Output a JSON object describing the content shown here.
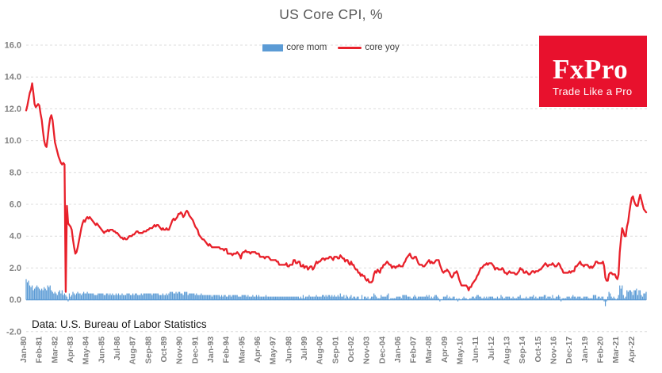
{
  "title": "US Core CPI, %",
  "footer": "Data: U.S. Bureau of Labor Statistics",
  "logo": {
    "brand": "FxPro",
    "tagline": "Trade Like a Pro",
    "bg": "#e8112d"
  },
  "legend": [
    {
      "label": "core mom",
      "color": "#5b9bd5",
      "type": "bar"
    },
    {
      "label": "core yoy",
      "color": "#e8202a",
      "type": "line"
    }
  ],
  "colors": {
    "bar": "#5b9bd5",
    "line": "#e8202a",
    "grid": "#dcdcdc",
    "axis_text": "#7f7f7f"
  },
  "chart_data": {
    "type": "bar+line",
    "title": "US Core CPI, %",
    "x_start": "Jan-1980",
    "x_end": "Feb-2023",
    "x_frequency": "monthly",
    "ylim": [
      -2.0,
      16.0
    ],
    "y_tick_step": 2.0,
    "y_tick_labels": [
      "16.0",
      "14.0",
      "12.0",
      "10.0",
      "8.0",
      "6.0",
      "4.0",
      "2.0",
      "0.0",
      "-2.0"
    ],
    "x_tick_labels": [
      "Jan-80",
      "Feb-81",
      "Mar-82",
      "Apr-83",
      "May-84",
      "Jun-85",
      "Jul-86",
      "Aug-87",
      "Sep-88",
      "Oct-89",
      "Nov-90",
      "Dec-91",
      "Jan-93",
      "Feb-94",
      "Mar-95",
      "Apr-96",
      "May-97",
      "Jun-98",
      "Jul-99",
      "Aug-00",
      "Sep-01",
      "Oct-02",
      "Nov-03",
      "Dec-04",
      "Jan-06",
      "Feb-07",
      "Mar-08",
      "Apr-09",
      "May-10",
      "Jun-11",
      "Jul-12",
      "Aug-13",
      "Sep-14",
      "Oct-15",
      "Nov-16",
      "Dec-17",
      "Jan-19",
      "Feb-20",
      "Mar-21",
      "Apr-22"
    ],
    "x_tick_month_interval": 13,
    "grid": "dashed-horizontal",
    "legend_position": "top-center",
    "series": [
      {
        "name": "core mom",
        "type": "bar",
        "color": "#5b9bd5",
        "values": [
          1.3,
          1.1,
          1.2,
          0.9,
          0.8,
          0.9,
          0.6,
          0.7,
          0.8,
          0.9,
          0.8,
          0.7,
          0.6,
          0.7,
          0.6,
          0.8,
          0.7,
          0.6,
          0.9,
          0.8,
          0.9,
          0.6,
          0.5,
          0.4,
          0.5,
          0.4,
          0.3,
          0.5,
          0.6,
          0.4,
          0.6,
          0.3,
          0.4,
          0.3,
          0.2,
          -0.1,
          0.4,
          0.2,
          0.3,
          0.5,
          0.4,
          0.3,
          0.4,
          0.5,
          0.4,
          0.4,
          0.3,
          0.4,
          0.5,
          0.4,
          0.4,
          0.5,
          0.4,
          0.4,
          0.4,
          0.4,
          0.4,
          0.3,
          0.3,
          0.3,
          0.4,
          0.4,
          0.4,
          0.4,
          0.4,
          0.3,
          0.3,
          0.4,
          0.4,
          0.3,
          0.4,
          0.3,
          0.4,
          0.3,
          0.3,
          0.4,
          0.3,
          0.4,
          0.3,
          0.3,
          0.4,
          0.3,
          0.3,
          0.3,
          0.4,
          0.4,
          0.4,
          0.3,
          0.3,
          0.4,
          0.3,
          0.4,
          0.4,
          0.3,
          0.3,
          0.3,
          0.4,
          0.3,
          0.4,
          0.4,
          0.4,
          0.4,
          0.4,
          0.4,
          0.4,
          0.3,
          0.4,
          0.4,
          0.4,
          0.4,
          0.4,
          0.3,
          0.3,
          0.3,
          0.4,
          0.3,
          0.3,
          0.4,
          0.3,
          0.4,
          0.5,
          0.5,
          0.5,
          0.4,
          0.4,
          0.5,
          0.4,
          0.5,
          0.5,
          0.4,
          0.4,
          0.3,
          0.5,
          0.5,
          0.5,
          0.3,
          0.4,
          0.4,
          0.4,
          0.4,
          0.4,
          0.3,
          0.4,
          0.3,
          0.3,
          0.3,
          0.4,
          0.3,
          0.3,
          0.3,
          0.3,
          0.3,
          0.3,
          0.3,
          0.3,
          0.2,
          0.3,
          0.3,
          0.3,
          0.3,
          0.3,
          0.3,
          0.2,
          0.3,
          0.2,
          0.3,
          0.3,
          0.2,
          0.2,
          0.3,
          0.3,
          0.2,
          0.3,
          0.3,
          0.3,
          0.3,
          0.3,
          0.2,
          0.2,
          0.2,
          0.3,
          0.3,
          0.3,
          0.3,
          0.2,
          0.3,
          0.2,
          0.2,
          0.2,
          0.3,
          0.2,
          0.2,
          0.3,
          0.2,
          0.3,
          0.2,
          0.2,
          0.2,
          0.2,
          0.2,
          0.3,
          0.2,
          0.2,
          0.2,
          0.2,
          0.2,
          0.2,
          0.2,
          0.2,
          0.2,
          0.2,
          0.2,
          0.2,
          0.2,
          0.2,
          0.2,
          0.2,
          0.2,
          0.2,
          0.2,
          0.2,
          0.2,
          0.2,
          0.2,
          0.2,
          0.2,
          0.2,
          0.2,
          0.1,
          0.2,
          0.1,
          0.3,
          0.1,
          0.2,
          0.2,
          0.2,
          0.3,
          0.2,
          0.2,
          0.2,
          0.2,
          0.2,
          0.3,
          0.2,
          0.2,
          0.2,
          0.2,
          0.3,
          0.3,
          0.2,
          0.3,
          0.2,
          0.3,
          0.3,
          0.2,
          0.3,
          0.2,
          0.3,
          0.2,
          0.2,
          0.3,
          0.2,
          0.4,
          0.2,
          0.2,
          0.3,
          0.1,
          0.3,
          0.2,
          0.1,
          0.2,
          0.3,
          0.1,
          0.2,
          0.2,
          0.1,
          0.2,
          0.2,
          0.0,
          0.0,
          0.3,
          0.0,
          0.2,
          0.2,
          0.1,
          0.2,
          0.0,
          0.1,
          0.2,
          0.2,
          0.4,
          0.3,
          0.2,
          0.1,
          0.1,
          0.1,
          0.3,
          0.2,
          0.2,
          0.2,
          0.2,
          0.3,
          0.4,
          0.0,
          0.1,
          0.1,
          0.1,
          0.1,
          0.1,
          0.2,
          0.2,
          0.2,
          0.2,
          0.1,
          0.3,
          0.3,
          0.3,
          0.3,
          0.2,
          0.2,
          0.2,
          0.1,
          0.1,
          0.2,
          0.3,
          0.2,
          0.1,
          0.2,
          0.2,
          0.2,
          0.2,
          0.2,
          0.2,
          0.2,
          0.3,
          0.2,
          0.3,
          0.1,
          0.2,
          0.1,
          0.2,
          0.3,
          0.3,
          0.2,
          0.1,
          -0.1,
          0.0,
          0.0,
          0.2,
          0.2,
          0.2,
          0.3,
          0.1,
          0.2,
          0.1,
          0.1,
          0.2,
          0.2,
          0.0,
          0.1,
          -0.1,
          0.1,
          0.0,
          0.0,
          0.1,
          0.2,
          0.1,
          0.1,
          0.0,
          0.0,
          0.1,
          0.1,
          0.2,
          0.2,
          0.1,
          0.2,
          0.3,
          0.3,
          0.2,
          0.2,
          0.1,
          0.1,
          0.2,
          0.1,
          0.2,
          0.1,
          0.2,
          0.2,
          0.2,
          0.2,
          0.1,
          0.1,
          0.1,
          0.2,
          0.1,
          0.1,
          0.3,
          0.2,
          0.1,
          0.1,
          0.2,
          0.2,
          0.2,
          0.2,
          0.1,
          0.1,
          0.2,
          0.1,
          0.1,
          0.1,
          0.2,
          0.2,
          0.3,
          0.1,
          0.1,
          0.1,
          0.1,
          0.2,
          0.1,
          0.1,
          0.2,
          0.2,
          0.2,
          0.3,
          0.1,
          0.2,
          0.1,
          0.1,
          0.2,
          0.2,
          0.2,
          0.2,
          0.3,
          0.3,
          0.1,
          0.2,
          0.2,
          0.2,
          0.1,
          0.3,
          0.1,
          0.1,
          0.2,
          0.2,
          0.3,
          0.2,
          -0.1,
          0.1,
          0.1,
          0.1,
          0.1,
          0.2,
          0.2,
          0.2,
          0.1,
          0.2,
          0.3,
          0.2,
          0.2,
          0.1,
          0.2,
          0.2,
          0.2,
          0.1,
          0.1,
          0.2,
          0.2,
          0.2,
          0.2,
          0.1,
          0.1,
          0.1,
          0.1,
          0.3,
          0.3,
          0.3,
          0.1,
          0.2,
          0.2,
          0.1,
          0.2,
          0.2,
          -0.1,
          -0.4,
          -0.1,
          0.2,
          0.5,
          0.4,
          0.2,
          0.1,
          0.2,
          0.1,
          0.0,
          0.1,
          0.3,
          0.9,
          0.7,
          0.9,
          0.3,
          0.1,
          0.2,
          0.6,
          0.5,
          0.6,
          0.6,
          0.5,
          0.3,
          0.6,
          0.6,
          0.7,
          0.3,
          0.6,
          0.6,
          0.3,
          0.2,
          0.4,
          0.4,
          0.5
        ]
      },
      {
        "name": "core yoy",
        "type": "line",
        "color": "#e8202a",
        "values": [
          11.9,
          12.2,
          12.6,
          13.0,
          13.2,
          13.6,
          13.0,
          12.3,
          12.1,
          12.2,
          12.3,
          12.2,
          11.7,
          11.3,
          10.6,
          10.0,
          9.7,
          9.6,
          10.2,
          10.9,
          11.4,
          11.6,
          11.3,
          10.6,
          9.9,
          9.6,
          9.3,
          9.0,
          8.8,
          8.6,
          8.5,
          8.6,
          8.5,
          0.5,
          5.9,
          4.8,
          4.7,
          4.6,
          4.4,
          3.8,
          3.3,
          2.9,
          3.0,
          3.3,
          3.7,
          4.1,
          4.5,
          4.8,
          5.0,
          4.9,
          5.1,
          5.2,
          5.1,
          5.2,
          5.1,
          5.0,
          4.9,
          4.8,
          4.7,
          4.8,
          4.7,
          4.6,
          4.5,
          4.4,
          4.3,
          4.2,
          4.3,
          4.3,
          4.4,
          4.3,
          4.4,
          4.4,
          4.4,
          4.3,
          4.3,
          4.2,
          4.2,
          4.1,
          4.0,
          3.9,
          3.9,
          3.8,
          3.9,
          3.8,
          3.8,
          3.9,
          4.0,
          4.0,
          4.0,
          4.1,
          4.1,
          4.2,
          4.3,
          4.3,
          4.2,
          4.2,
          4.2,
          4.2,
          4.3,
          4.3,
          4.3,
          4.4,
          4.4,
          4.5,
          4.5,
          4.5,
          4.6,
          4.7,
          4.6,
          4.7,
          4.7,
          4.6,
          4.5,
          4.4,
          4.5,
          4.4,
          4.4,
          4.5,
          4.4,
          4.4,
          4.6,
          4.8,
          5.0,
          5.1,
          5.0,
          5.1,
          5.2,
          5.4,
          5.4,
          5.5,
          5.4,
          5.2,
          5.3,
          5.5,
          5.6,
          5.5,
          5.3,
          5.2,
          5.1,
          5.0,
          4.8,
          4.6,
          4.5,
          4.4,
          4.1,
          4.0,
          3.9,
          3.8,
          3.8,
          3.7,
          3.6,
          3.5,
          3.4,
          3.5,
          3.4,
          3.3,
          3.3,
          3.3,
          3.3,
          3.3,
          3.3,
          3.3,
          3.2,
          3.2,
          3.2,
          3.1,
          3.2,
          3.2,
          2.9,
          2.9,
          2.9,
          2.9,
          2.8,
          2.9,
          2.9,
          2.9,
          3.0,
          2.9,
          2.8,
          2.6,
          2.9,
          3.0,
          3.0,
          3.1,
          3.0,
          3.0,
          3.0,
          2.9,
          3.0,
          3.0,
          3.0,
          3.0,
          2.9,
          2.9,
          2.9,
          2.7,
          2.7,
          2.7,
          2.7,
          2.6,
          2.7,
          2.7,
          2.7,
          2.6,
          2.5,
          2.5,
          2.5,
          2.5,
          2.5,
          2.4,
          2.4,
          2.2,
          2.2,
          2.2,
          2.2,
          2.2,
          2.2,
          2.3,
          2.1,
          2.1,
          2.2,
          2.2,
          2.2,
          2.5,
          2.5,
          2.3,
          2.3,
          2.4,
          2.4,
          2.1,
          2.1,
          2.2,
          2.0,
          2.1,
          2.1,
          1.9,
          2.0,
          2.1,
          2.1,
          1.9,
          2.0,
          2.2,
          2.4,
          2.3,
          2.4,
          2.4,
          2.5,
          2.6,
          2.6,
          2.5,
          2.6,
          2.6,
          2.6,
          2.7,
          2.7,
          2.6,
          2.5,
          2.7,
          2.7,
          2.7,
          2.6,
          2.6,
          2.8,
          2.7,
          2.6,
          2.6,
          2.4,
          2.5,
          2.5,
          2.3,
          2.2,
          2.4,
          2.2,
          2.2,
          2.0,
          1.9,
          1.9,
          1.7,
          1.7,
          1.5,
          1.6,
          1.5,
          1.5,
          1.3,
          1.2,
          1.3,
          1.1,
          1.1,
          1.1,
          1.2,
          1.6,
          1.8,
          1.7,
          1.9,
          1.8,
          1.7,
          2.0,
          2.0,
          2.2,
          2.2,
          2.3,
          2.4,
          2.3,
          2.2,
          2.2,
          2.0,
          2.1,
          2.1,
          2.0,
          2.1,
          2.1,
          2.2,
          2.1,
          2.1,
          2.1,
          2.3,
          2.4,
          2.6,
          2.7,
          2.8,
          2.9,
          2.7,
          2.6,
          2.6,
          2.7,
          2.7,
          2.5,
          2.3,
          2.2,
          2.2,
          2.2,
          2.1,
          2.1,
          2.2,
          2.3,
          2.4,
          2.5,
          2.3,
          2.4,
          2.3,
          2.3,
          2.4,
          2.5,
          2.5,
          2.5,
          2.2,
          2.0,
          1.8,
          1.7,
          1.8,
          1.8,
          1.9,
          1.8,
          1.7,
          1.5,
          1.4,
          1.5,
          1.7,
          1.7,
          1.8,
          1.6,
          1.3,
          1.1,
          0.9,
          0.9,
          0.9,
          0.9,
          0.9,
          0.8,
          0.6,
          0.8,
          0.8,
          1.0,
          1.1,
          1.2,
          1.3,
          1.5,
          1.6,
          1.8,
          2.0,
          2.0,
          2.1,
          2.2,
          2.2,
          2.3,
          2.2,
          2.3,
          2.3,
          2.3,
          2.2,
          2.1,
          1.9,
          2.0,
          2.0,
          1.9,
          1.9,
          1.9,
          2.0,
          1.9,
          1.7,
          1.7,
          1.6,
          1.7,
          1.8,
          1.7,
          1.7,
          1.7,
          1.7,
          1.6,
          1.6,
          1.7,
          1.8,
          2.0,
          1.9,
          1.9,
          1.7,
          1.7,
          1.8,
          1.7,
          1.6,
          1.6,
          1.7,
          1.8,
          1.8,
          1.7,
          1.8,
          1.8,
          1.8,
          1.9,
          1.9,
          2.0,
          2.1,
          2.2,
          2.3,
          2.2,
          2.1,
          2.2,
          2.2,
          2.2,
          2.3,
          2.2,
          2.1,
          2.1,
          2.2,
          2.3,
          2.2,
          2.0,
          1.9,
          1.7,
          1.7,
          1.7,
          1.7,
          1.7,
          1.8,
          1.7,
          1.8,
          1.8,
          1.8,
          2.1,
          2.1,
          2.2,
          2.3,
          2.4,
          2.2,
          2.2,
          2.1,
          2.2,
          2.2,
          2.2,
          2.1,
          2.0,
          2.1,
          2.0,
          2.1,
          2.2,
          2.4,
          2.4,
          2.3,
          2.3,
          2.3,
          2.3,
          2.4,
          2.1,
          1.4,
          1.2,
          1.2,
          1.6,
          1.7,
          1.7,
          1.6,
          1.6,
          1.6,
          1.4,
          1.3,
          1.6,
          3.0,
          3.8,
          4.5,
          4.3,
          4.0,
          4.0,
          4.6,
          4.9,
          5.5,
          6.0,
          6.4,
          6.5,
          6.2,
          6.0,
          5.9,
          5.9,
          6.3,
          6.6,
          6.3,
          6.0,
          5.7,
          5.6,
          5.5
        ]
      }
    ]
  }
}
